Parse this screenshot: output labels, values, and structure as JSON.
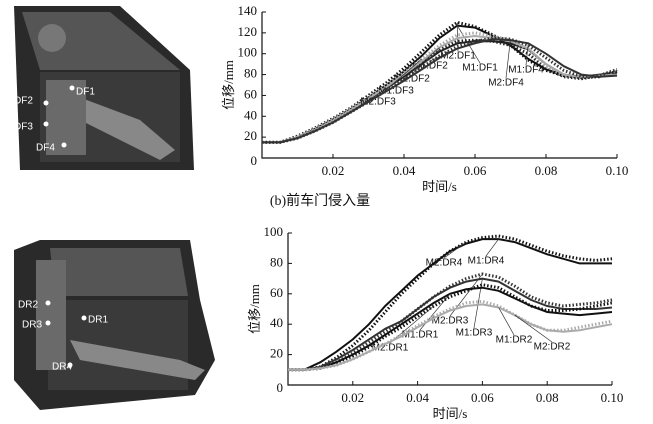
{
  "figure": {
    "caption": "(b)前车门侵入量",
    "top_photo_labels": [
      "DF1",
      "DF2",
      "DF3",
      "DF4"
    ],
    "bottom_photo_labels": [
      "DR1",
      "DR2",
      "DR3",
      "DR4"
    ]
  },
  "chart_data": [
    {
      "type": "line",
      "x_label": "时间/s",
      "y_label": "位移/mm",
      "x": [
        0,
        0.005,
        0.01,
        0.015,
        0.02,
        0.025,
        0.03,
        0.035,
        0.04,
        0.045,
        0.05,
        0.055,
        0.06,
        0.065,
        0.07,
        0.075,
        0.08,
        0.085,
        0.09,
        0.095,
        0.1
      ],
      "xlim": [
        0,
        0.1
      ],
      "ylim": [
        0,
        140
      ],
      "xticks": [
        0.02,
        0.04,
        0.06,
        0.08,
        {
          "value": 0.1,
          "label": "0.10"
        }
      ],
      "yticks": [
        0,
        20,
        40,
        60,
        80,
        100,
        120,
        140
      ],
      "series": [
        {
          "name": "M1:DF1",
          "color": "#111111",
          "style": "solid",
          "values": [
            15,
            15,
            20,
            28,
            37,
            47,
            58,
            70,
            83,
            98,
            115,
            127,
            125,
            117,
            108,
            95,
            85,
            80,
            78,
            78,
            80
          ]
        },
        {
          "name": "M2:DF1",
          "color": "#111111",
          "style": "dotted",
          "values": [
            15,
            15,
            21,
            29,
            38,
            48,
            60,
            72,
            86,
            102,
            118,
            130,
            126,
            118,
            108,
            94,
            84,
            79,
            77,
            78,
            82
          ]
        },
        {
          "name": "M1:DF2",
          "color": "#222222",
          "style": "solid",
          "values": [
            15,
            15,
            19,
            26,
            35,
            45,
            56,
            67,
            78,
            90,
            102,
            110,
            112,
            112,
            110,
            104,
            90,
            80,
            78,
            80,
            82
          ]
        },
        {
          "name": "M2:DF2",
          "color": "#222222",
          "style": "dotted",
          "values": [
            15,
            15,
            20,
            27,
            36,
            46,
            57,
            68,
            80,
            92,
            104,
            112,
            113,
            112,
            108,
            100,
            86,
            78,
            76,
            79,
            83
          ]
        },
        {
          "name": "M1:DF3",
          "color": "#aaaaaa",
          "style": "solid",
          "values": [
            15,
            15,
            20,
            27,
            36,
            46,
            57,
            68,
            80,
            93,
            106,
            115,
            117,
            115,
            112,
            105,
            90,
            80,
            78,
            79,
            80
          ]
        },
        {
          "name": "M2:DF3",
          "color": "#aaaaaa",
          "style": "dotted",
          "values": [
            15,
            15,
            20,
            28,
            37,
            47,
            58,
            70,
            82,
            95,
            108,
            118,
            120,
            117,
            113,
            104,
            88,
            79,
            77,
            79,
            84
          ]
        },
        {
          "name": "M1:DF4",
          "color": "#333333",
          "style": "solid",
          "values": [
            15,
            15,
            19,
            26,
            34,
            44,
            54,
            64,
            74,
            85,
            96,
            105,
            110,
            114,
            113,
            110,
            100,
            88,
            80,
            78,
            79
          ]
        },
        {
          "name": "M2:DF4",
          "color": "#333333",
          "style": "dotted",
          "values": [
            15,
            15,
            19,
            26,
            34,
            44,
            54,
            65,
            76,
            87,
            98,
            107,
            112,
            115,
            114,
            108,
            96,
            84,
            78,
            79,
            85
          ]
        }
      ]
    },
    {
      "type": "line",
      "x_label": "时间/s",
      "y_label": "位移/mm",
      "x": [
        0,
        0.005,
        0.01,
        0.015,
        0.02,
        0.025,
        0.03,
        0.035,
        0.04,
        0.045,
        0.05,
        0.055,
        0.06,
        0.065,
        0.07,
        0.075,
        0.08,
        0.085,
        0.09,
        0.095,
        0.1
      ],
      "xlim": [
        0,
        0.1
      ],
      "ylim": [
        0,
        100
      ],
      "xticks": [
        0.02,
        0.04,
        0.06,
        0.08,
        {
          "value": 0.1,
          "label": "0.10"
        }
      ],
      "yticks": [
        0,
        20,
        40,
        60,
        80,
        100
      ],
      "series": [
        {
          "name": "M1:DR4",
          "color": "#111111",
          "style": "solid",
          "values": [
            10,
            10,
            15,
            22,
            30,
            40,
            52,
            62,
            72,
            80,
            88,
            93,
            96,
            96,
            94,
            90,
            86,
            83,
            80,
            80,
            80
          ]
        },
        {
          "name": "M2:DR4",
          "color": "#111111",
          "style": "dotted",
          "values": [
            10,
            10,
            12,
            18,
            26,
            36,
            48,
            60,
            70,
            80,
            88,
            94,
            97,
            98,
            96,
            92,
            88,
            85,
            83,
            82,
            83
          ]
        },
        {
          "name": "M1:DR3",
          "color": "#333333",
          "style": "solid",
          "values": [
            10,
            10,
            12,
            17,
            23,
            30,
            37,
            42,
            50,
            58,
            64,
            68,
            70,
            68,
            62,
            56,
            52,
            50,
            50,
            50,
            51
          ]
        },
        {
          "name": "M2:DR3",
          "color": "#333333",
          "style": "dotted",
          "values": [
            10,
            10,
            11,
            15,
            21,
            28,
            35,
            42,
            50,
            58,
            65,
            70,
            73,
            71,
            65,
            58,
            54,
            52,
            53,
            54,
            56
          ]
        },
        {
          "name": "M1:DR1",
          "color": "#111111",
          "style": "solid",
          "values": [
            10,
            10,
            11,
            15,
            20,
            26,
            33,
            40,
            47,
            54,
            60,
            63,
            64,
            62,
            57,
            52,
            48,
            47,
            46,
            47,
            48
          ]
        },
        {
          "name": "M2:DR1",
          "color": "#111111",
          "style": "dotted",
          "values": [
            10,
            10,
            11,
            14,
            19,
            25,
            32,
            38,
            45,
            52,
            58,
            62,
            66,
            64,
            58,
            52,
            49,
            49,
            50,
            52,
            54
          ]
        },
        {
          "name": "M1:DR2",
          "color": "#aaaaaa",
          "style": "solid",
          "values": [
            10,
            10,
            11,
            13,
            17,
            22,
            27,
            32,
            38,
            44,
            49,
            52,
            53,
            51,
            46,
            40,
            36,
            35,
            36,
            38,
            40
          ]
        },
        {
          "name": "M2:DR2",
          "color": "#aaaaaa",
          "style": "dotted",
          "values": [
            10,
            10,
            11,
            13,
            17,
            22,
            27,
            33,
            39,
            45,
            50,
            54,
            55,
            52,
            46,
            40,
            36,
            36,
            38,
            40,
            42
          ]
        }
      ]
    }
  ]
}
